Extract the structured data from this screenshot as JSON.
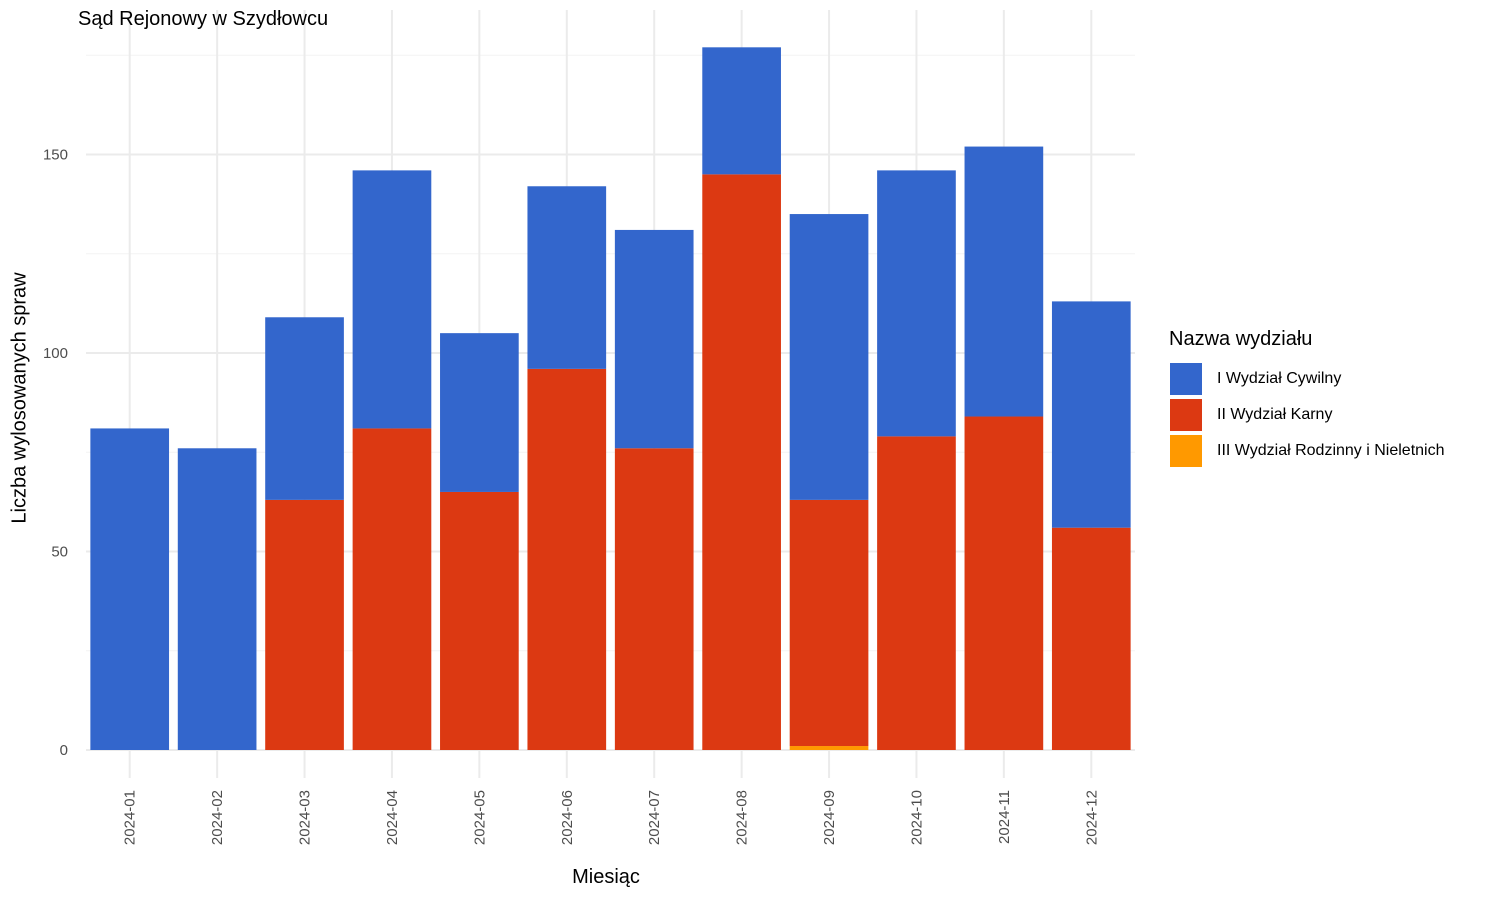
{
  "chart_data": {
    "type": "bar",
    "stacked": true,
    "title": "Sąd Rejonowy w Szydłowcu",
    "xlabel": "Miesiąc",
    "ylabel": "Liczba wylosowanych spraw",
    "ylim": [
      0,
      178
    ],
    "yticks": [
      0,
      50,
      100,
      150
    ],
    "grid": true,
    "legend_title": "Nazwa wydziału",
    "legend_position": "right",
    "categories": [
      "2024-01",
      "2024-02",
      "2024-03",
      "2024-04",
      "2024-05",
      "2024-06",
      "2024-07",
      "2024-08",
      "2024-09",
      "2024-10",
      "2024-11",
      "2024-12"
    ],
    "series": [
      {
        "name": "I Wydział Cywilny",
        "color": "#3366CC",
        "values": [
          81,
          76,
          46,
          65,
          40,
          46,
          55,
          32,
          72,
          67,
          68,
          57
        ]
      },
      {
        "name": "II Wydział Karny",
        "color": "#DC3912",
        "values": [
          0,
          0,
          63,
          81,
          65,
          96,
          76,
          145,
          62,
          79,
          84,
          56
        ]
      },
      {
        "name": "III Wydział Rodzinny i Nieletnich",
        "color": "#FF9900",
        "values": [
          0,
          0,
          0,
          0,
          0,
          0,
          0,
          0,
          1,
          0,
          0,
          0
        ]
      }
    ]
  }
}
